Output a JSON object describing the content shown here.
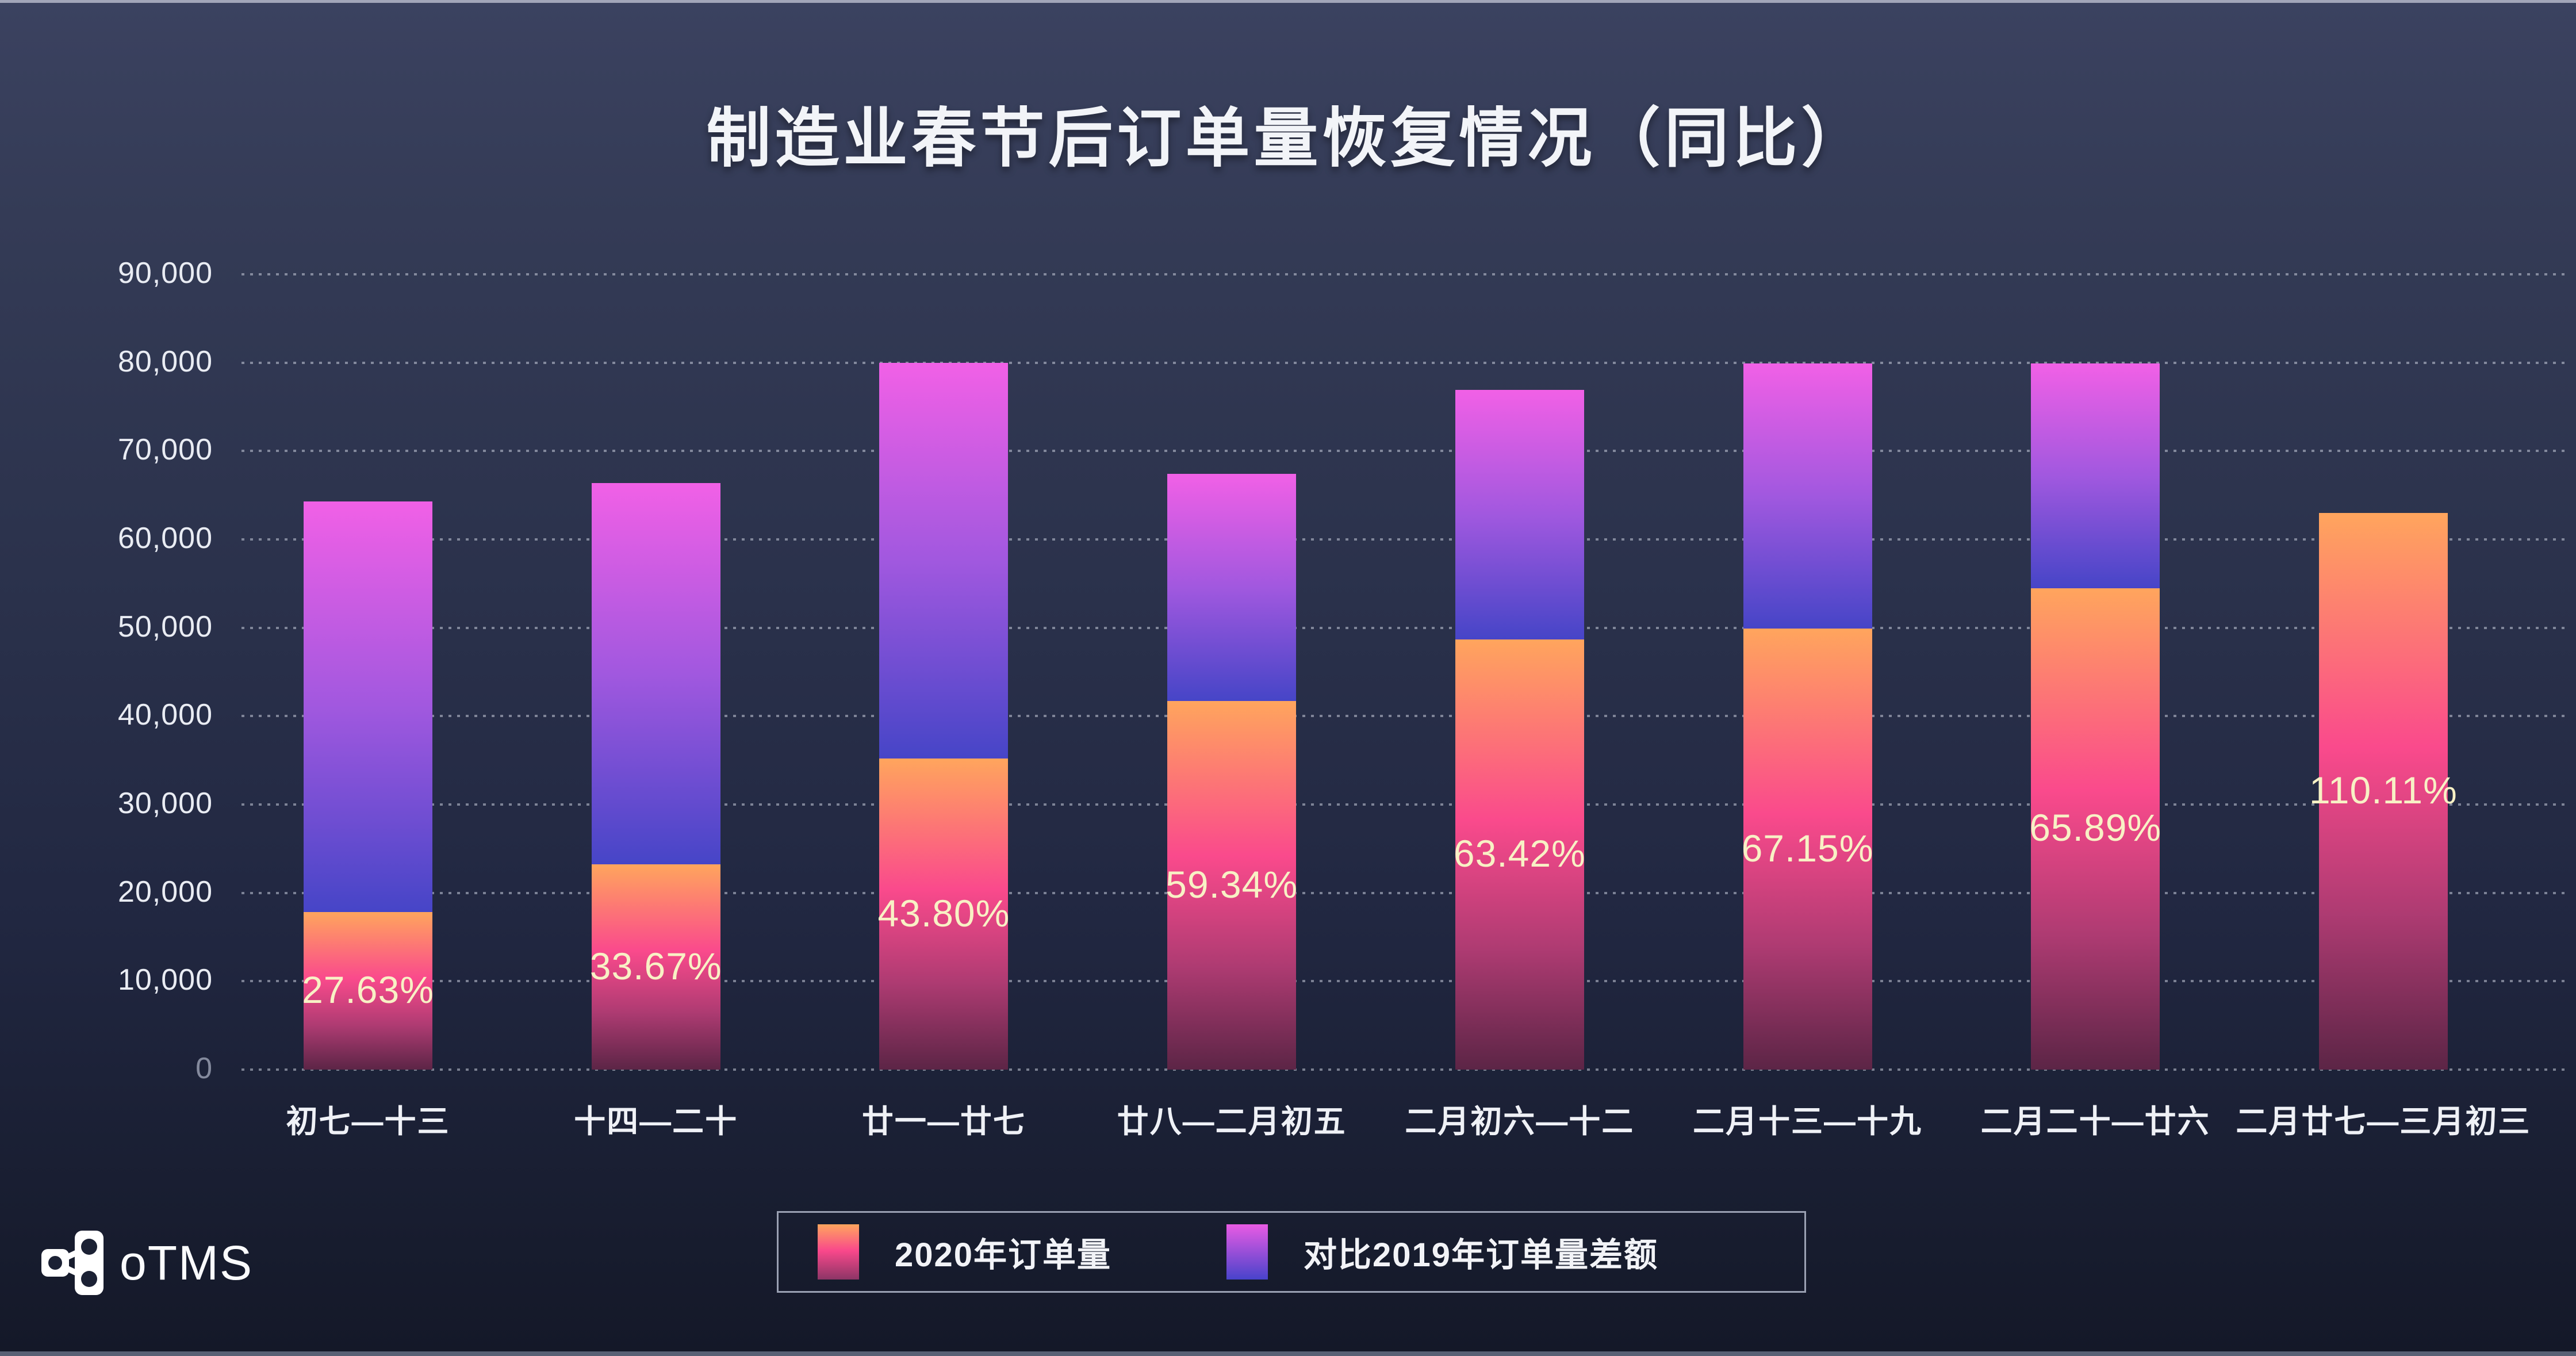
{
  "title": "制造业春节后订单量恢复情况（同比）",
  "logo": {
    "text": "oTMS",
    "icon": "share-network-icon"
  },
  "palette": {
    "background_top": "#3b4260",
    "background_bottom": "#141828",
    "title_text": "#f2f4f8",
    "axis_text": "#e9ecf3",
    "axis_zero_text": "#848a9d",
    "percent_label_text": "#f8f1c5",
    "gridline": "rgba(214,219,232,0.5)",
    "series_2020_gradient": [
      "#ffa55d",
      "#fa4a8c",
      "#5c2546"
    ],
    "series_diff_gradient": [
      "#f160e6",
      "#a158df",
      "#4645c7"
    ],
    "legend_border": "#9aa0b2"
  },
  "y_axis": {
    "tick_labels": [
      "90,000",
      "80,000",
      "70,000",
      "60,000",
      "50,000",
      "40,000",
      "30,000",
      "20,000",
      "10,000",
      "0"
    ]
  },
  "legend": {
    "items": [
      {
        "label": "2020年订单量"
      },
      {
        "label": "对比2019年订单量差额"
      }
    ]
  },
  "chart_data": {
    "type": "bar",
    "stacked": true,
    "title": "制造业春节后订单量恢复情况（同比）",
    "categories": [
      "初七—十三",
      "十四—二十",
      "廿一—廿七",
      "廿八—二月初五",
      "二月初六—十二",
      "二月十三—十九",
      "二月二十—廿六",
      "二月廿七—三月初三"
    ],
    "series": [
      {
        "name": "2020年订单量",
        "values": [
          17800,
          23200,
          35200,
          41700,
          48700,
          49900,
          54500,
          63000
        ]
      },
      {
        "name": "对比2019年订单量差额",
        "values": [
          46500,
          43200,
          44800,
          25700,
          28200,
          30000,
          25400,
          0
        ]
      }
    ],
    "bar_labels": [
      "27.63%",
      "33.67%",
      "43.80%",
      "59.34%",
      "63.42%",
      "67.15%",
      "65.89%",
      "110.11%"
    ],
    "xlabel": "",
    "ylabel": "",
    "ylim": [
      0,
      90000
    ],
    "ytick_step": 10000,
    "grid": "horizontal-dotted",
    "legend_position": "bottom-center"
  }
}
